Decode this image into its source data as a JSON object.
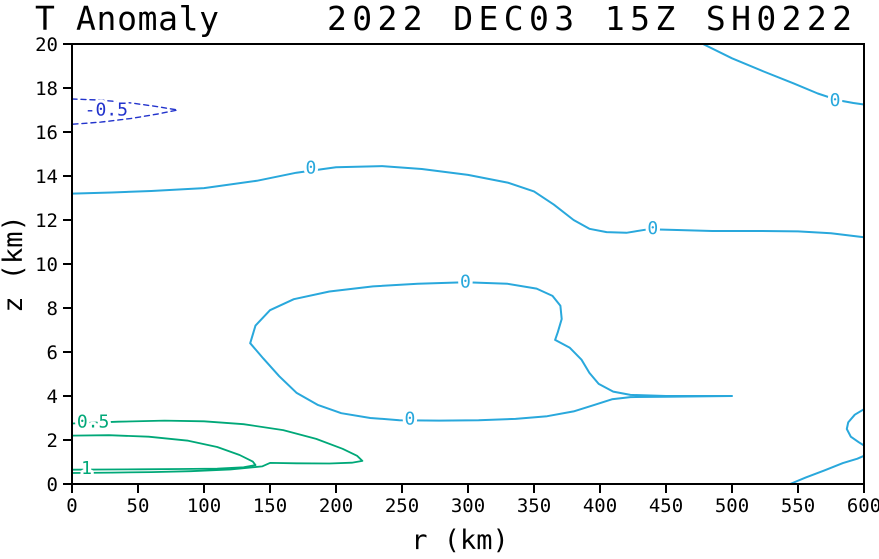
{
  "title": {
    "left": "T Anomaly",
    "right": "2022 DEC03 15Z  SH0222"
  },
  "axes": {
    "xlabel": "r (km)",
    "ylabel": "z (km)",
    "xlim": [
      0,
      600
    ],
    "ylim": [
      0,
      20
    ],
    "xticks": [
      0,
      50,
      100,
      150,
      200,
      250,
      300,
      350,
      400,
      450,
      500,
      550,
      600
    ],
    "yticks": [
      0,
      2,
      4,
      6,
      8,
      10,
      12,
      14,
      16,
      18,
      20
    ]
  },
  "colors": {
    "zero_contour": "#29A8DC",
    "negative_contour": "#2233CC",
    "positive_contour": "#00A878",
    "axis": "#000000",
    "background": "#FFFFFF"
  },
  "chart_data": {
    "type": "contour",
    "title": "T Anomaly 2022 DEC03 15Z SH0222",
    "xlabel": "r (km)",
    "ylabel": "z (km)",
    "xlim": [
      0,
      600
    ],
    "ylim": [
      0,
      20
    ],
    "grid": false,
    "levels_shown": [
      -0.5,
      0,
      0.5,
      1
    ],
    "contours": [
      {
        "level": 0,
        "name": "zero-line-upper-troposphere",
        "color": "#29A8DC",
        "style": "solid",
        "width": 2,
        "points": [
          [
            0,
            13.2
          ],
          [
            30,
            13.25
          ],
          [
            60,
            13.32
          ],
          [
            100,
            13.45
          ],
          [
            140,
            13.78
          ],
          [
            170,
            14.15
          ],
          [
            200,
            14.4
          ],
          [
            235,
            14.45
          ],
          [
            265,
            14.32
          ],
          [
            300,
            14.05
          ],
          [
            330,
            13.7
          ],
          [
            350,
            13.3
          ],
          [
            365,
            12.7
          ],
          [
            380,
            12.0
          ],
          [
            392,
            11.6
          ],
          [
            405,
            11.45
          ],
          [
            420,
            11.42
          ],
          [
            437,
            11.58
          ],
          [
            455,
            11.55
          ],
          [
            485,
            11.5
          ],
          [
            520,
            11.5
          ],
          [
            550,
            11.48
          ],
          [
            575,
            11.4
          ],
          [
            600,
            11.22
          ]
        ],
        "labels": [
          {
            "text": "0",
            "r": 181,
            "z": 14.35
          },
          {
            "text": "0",
            "r": 440,
            "z": 11.6
          }
        ]
      },
      {
        "level": 0,
        "name": "zero-line-top-right",
        "color": "#29A8DC",
        "style": "solid",
        "width": 2,
        "points": [
          [
            478,
            20
          ],
          [
            500,
            19.35
          ],
          [
            524,
            18.75
          ],
          [
            547,
            18.2
          ],
          [
            565,
            17.75
          ],
          [
            580,
            17.45
          ],
          [
            592,
            17.32
          ],
          [
            600,
            17.25
          ]
        ],
        "labels": [
          {
            "text": "0",
            "r": 578,
            "z": 17.42
          }
        ]
      },
      {
        "level": 0,
        "name": "zero-closed-loop-midlevel",
        "color": "#29A8DC",
        "style": "solid",
        "width": 2,
        "points": [
          [
            135,
            6.4
          ],
          [
            139,
            7.2
          ],
          [
            150,
            7.9
          ],
          [
            168,
            8.4
          ],
          [
            195,
            8.75
          ],
          [
            228,
            8.98
          ],
          [
            262,
            9.1
          ],
          [
            298,
            9.17
          ],
          [
            330,
            9.1
          ],
          [
            352,
            8.88
          ],
          [
            364,
            8.55
          ],
          [
            370,
            8.1
          ],
          [
            371,
            7.5
          ],
          [
            368,
            6.9
          ],
          [
            366,
            6.55
          ],
          [
            377,
            6.2
          ],
          [
            386,
            5.65
          ],
          [
            392,
            5.05
          ],
          [
            399,
            4.55
          ],
          [
            410,
            4.2
          ],
          [
            423,
            4.05
          ],
          [
            450,
            4.0
          ],
          [
            500,
            4.0
          ],
          [
            450,
            3.97
          ],
          [
            423,
            3.95
          ],
          [
            409,
            3.85
          ],
          [
            396,
            3.6
          ],
          [
            380,
            3.3
          ],
          [
            360,
            3.08
          ],
          [
            336,
            2.96
          ],
          [
            308,
            2.9
          ],
          [
            278,
            2.88
          ],
          [
            248,
            2.9
          ],
          [
            226,
            3.0
          ],
          [
            204,
            3.22
          ],
          [
            186,
            3.6
          ],
          [
            170,
            4.15
          ],
          [
            157,
            4.9
          ],
          [
            145,
            5.7
          ],
          [
            135,
            6.4
          ]
        ],
        "labels": [
          {
            "text": "0",
            "r": 298,
            "z": 9.17
          },
          {
            "text": "0",
            "r": 256,
            "z": 2.93
          }
        ]
      },
      {
        "level": 0,
        "name": "zero-right-edge-arc",
        "color": "#29A8DC",
        "style": "solid",
        "width": 2,
        "points": [
          [
            600,
            3.4
          ],
          [
            593,
            3.15
          ],
          [
            588,
            2.8
          ],
          [
            587,
            2.5
          ],
          [
            590,
            2.15
          ],
          [
            596,
            1.9
          ],
          [
            600,
            1.75
          ]
        ],
        "labels": []
      },
      {
        "level": 0,
        "name": "zero-bottom-right",
        "color": "#29A8DC",
        "style": "solid",
        "width": 2,
        "points": [
          [
            544,
            0
          ],
          [
            556,
            0.3
          ],
          [
            570,
            0.62
          ],
          [
            584,
            0.95
          ],
          [
            595,
            1.15
          ],
          [
            600,
            1.28
          ]
        ],
        "labels": []
      },
      {
        "level": -0.5,
        "name": "negative-half-dashed-top-left",
        "color": "#2233CC",
        "style": "dashed",
        "width": 1.4,
        "points": [
          [
            0,
            17.5
          ],
          [
            22,
            17.45
          ],
          [
            45,
            17.32
          ],
          [
            65,
            17.15
          ],
          [
            80,
            17.0
          ],
          [
            65,
            16.82
          ],
          [
            45,
            16.62
          ],
          [
            22,
            16.45
          ],
          [
            0,
            16.35
          ]
        ],
        "labels": [
          {
            "text": "-0.5",
            "r": 26,
            "z": 16.98
          }
        ]
      },
      {
        "level": 0.5,
        "name": "half-contour-bottom-left",
        "color": "#00A878",
        "style": "solid",
        "width": 1.8,
        "points": [
          [
            0,
            2.75
          ],
          [
            35,
            2.83
          ],
          [
            70,
            2.88
          ],
          [
            100,
            2.85
          ],
          [
            130,
            2.72
          ],
          [
            160,
            2.45
          ],
          [
            185,
            2.05
          ],
          [
            205,
            1.6
          ],
          [
            216,
            1.28
          ],
          [
            220,
            1.05
          ],
          [
            212,
            0.97
          ],
          [
            195,
            0.93
          ],
          [
            170,
            0.94
          ],
          [
            150,
            0.96
          ],
          [
            144,
            0.8
          ],
          [
            120,
            0.66
          ],
          [
            90,
            0.58
          ],
          [
            60,
            0.54
          ],
          [
            30,
            0.52
          ],
          [
            0,
            0.5
          ]
        ],
        "labels": [
          {
            "text": "0.5",
            "r": 16,
            "z": 2.8
          }
        ]
      },
      {
        "level": 1,
        "name": "one-contour-bottom-left",
        "color": "#00A878",
        "style": "solid",
        "width": 1.8,
        "points": [
          [
            0,
            2.2
          ],
          [
            28,
            2.22
          ],
          [
            58,
            2.15
          ],
          [
            88,
            1.97
          ],
          [
            110,
            1.68
          ],
          [
            127,
            1.32
          ],
          [
            137,
            1.02
          ],
          [
            139,
            0.86
          ],
          [
            130,
            0.76
          ],
          [
            110,
            0.7
          ],
          [
            82,
            0.68
          ],
          [
            52,
            0.67
          ],
          [
            25,
            0.66
          ],
          [
            0,
            0.65
          ]
        ],
        "labels": [
          {
            "text": "1",
            "r": 11,
            "z": 0.68
          }
        ]
      }
    ]
  }
}
